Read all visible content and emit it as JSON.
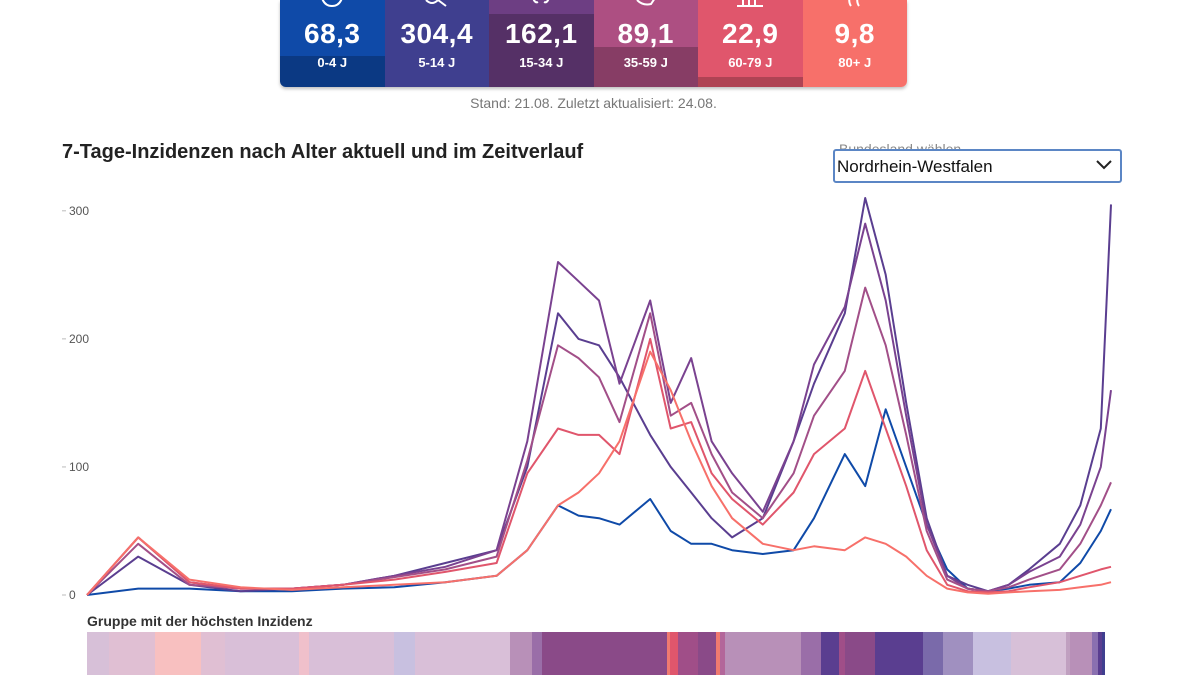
{
  "tiles": [
    {
      "value": "68,3",
      "age": "0-4 J",
      "color": "#0f4aa8",
      "icon": "baby-icon"
    },
    {
      "value": "304,4",
      "age": "5-14 J",
      "color": "#3f3f8f",
      "icon": "child-icon"
    },
    {
      "value": "162,1",
      "age": "15-34 J",
      "color": "#6d3e83",
      "icon": "youth-icon"
    },
    {
      "value": "89,1",
      "age": "35-59 J",
      "color": "#ad4f82",
      "icon": "adult-icon"
    },
    {
      "value": "22,9",
      "age": "60-79 J",
      "color": "#e0566c",
      "icon": "senior-icon"
    },
    {
      "value": "9,8",
      "age": "80+ J",
      "color": "#f7706a",
      "icon": "elderly-icon"
    }
  ],
  "stand_text": "Stand: 21.08. Zuletzt aktualisiert: 24.08.",
  "title": "7-Tage-Inzidenzen nach Alter aktuell und im Zeitverlauf",
  "select": {
    "label": "Bundesland wählen",
    "value": "Nordrhein-Westfalen"
  },
  "strip_label": "Gruppe mit der höchsten Inzidenz",
  "chart_data": {
    "type": "line",
    "title": "7-Tage-Inzidenzen nach Alter aktuell und im Zeitverlauf",
    "xlabel": "",
    "ylabel": "",
    "ylim": [
      0,
      310
    ],
    "yticks": [
      0,
      100,
      200,
      300
    ],
    "x": [
      0,
      0.05,
      0.1,
      0.15,
      0.2,
      0.25,
      0.3,
      0.35,
      0.4,
      0.43,
      0.46,
      0.48,
      0.5,
      0.52,
      0.55,
      0.57,
      0.59,
      0.61,
      0.63,
      0.66,
      0.69,
      0.71,
      0.74,
      0.76,
      0.78,
      0.8,
      0.82,
      0.84,
      0.86,
      0.88,
      0.9,
      0.92,
      0.95,
      0.97,
      0.99,
      1.0
    ],
    "series": [
      {
        "name": "0-4 J",
        "color": "#0f4aa8",
        "values": [
          0,
          5,
          5,
          3,
          3,
          5,
          6,
          10,
          15,
          35,
          70,
          62,
          60,
          55,
          75,
          50,
          40,
          40,
          35,
          32,
          35,
          60,
          110,
          85,
          145,
          100,
          55,
          20,
          5,
          3,
          5,
          8,
          10,
          25,
          50,
          67
        ]
      },
      {
        "name": "5-14 J",
        "color": "#5a3e90",
        "values": [
          0,
          30,
          8,
          3,
          5,
          8,
          15,
          25,
          35,
          100,
          220,
          200,
          195,
          170,
          125,
          100,
          80,
          60,
          45,
          60,
          120,
          165,
          220,
          310,
          250,
          150,
          60,
          15,
          8,
          3,
          8,
          20,
          40,
          70,
          130,
          305
        ]
      },
      {
        "name": "15-34 J",
        "color": "#7a4290",
        "values": [
          0,
          45,
          10,
          5,
          5,
          8,
          15,
          22,
          35,
          120,
          260,
          245,
          230,
          165,
          230,
          150,
          185,
          120,
          95,
          65,
          120,
          180,
          225,
          290,
          230,
          140,
          55,
          15,
          5,
          3,
          8,
          18,
          30,
          55,
          100,
          160
        ]
      },
      {
        "name": "35-59 J",
        "color": "#a24f88",
        "values": [
          0,
          40,
          8,
          5,
          5,
          8,
          14,
          20,
          30,
          105,
          195,
          185,
          170,
          135,
          220,
          140,
          150,
          110,
          80,
          60,
          95,
          140,
          175,
          240,
          195,
          125,
          50,
          12,
          5,
          3,
          6,
          12,
          20,
          40,
          70,
          88
        ]
      },
      {
        "name": "60-79 J",
        "color": "#e0566c",
        "values": [
          0,
          45,
          10,
          5,
          5,
          8,
          12,
          18,
          25,
          95,
          130,
          125,
          125,
          110,
          200,
          130,
          135,
          95,
          75,
          55,
          80,
          110,
          130,
          175,
          130,
          85,
          35,
          8,
          3,
          2,
          3,
          6,
          10,
          15,
          20,
          22
        ]
      },
      {
        "name": "80+ J",
        "color": "#f7706a",
        "values": [
          0,
          45,
          12,
          6,
          4,
          6,
          8,
          10,
          15,
          35,
          70,
          80,
          95,
          120,
          190,
          160,
          120,
          85,
          60,
          40,
          35,
          38,
          35,
          45,
          40,
          30,
          15,
          5,
          2,
          1,
          2,
          3,
          4,
          6,
          8,
          10
        ]
      }
    ]
  }
}
